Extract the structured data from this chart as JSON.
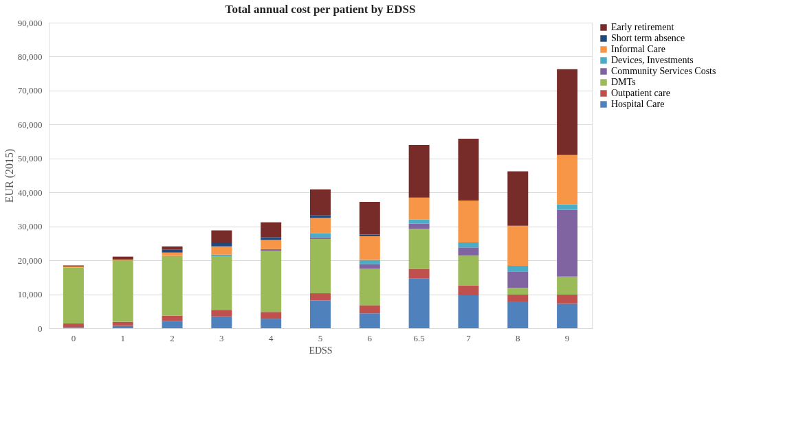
{
  "chart_data": {
    "type": "bar",
    "stacked": true,
    "title": "Total annual cost per patient by EDSS",
    "xlabel": "EDSS",
    "ylabel": "EUR (2015)",
    "categories": [
      "0",
      "1",
      "2",
      "3",
      "4",
      "5",
      "6",
      "6.5",
      "7",
      "8",
      "9"
    ],
    "series": [
      {
        "name": "Hospital Care",
        "color": "#4f81bd",
        "values": [
          300,
          700,
          2100,
          3500,
          2800,
          8200,
          4400,
          14700,
          9700,
          7700,
          7200
        ]
      },
      {
        "name": "Outpatient care",
        "color": "#c0504d",
        "values": [
          1100,
          1200,
          1600,
          1900,
          2000,
          2100,
          2400,
          2800,
          2900,
          2200,
          2700
        ]
      },
      {
        "name": "DMTs",
        "color": "#9bbb59",
        "values": [
          16500,
          18000,
          17600,
          15700,
          18000,
          16000,
          10700,
          11800,
          8800,
          2000,
          5300
        ]
      },
      {
        "name": "Community Services Costs",
        "color": "#8064a2",
        "values": [
          0,
          0,
          0,
          0,
          500,
          500,
          1400,
          1500,
          2400,
          4700,
          19700
        ]
      },
      {
        "name": "Devices, Investments",
        "color": "#4bacc6",
        "values": [
          0,
          100,
          0,
          600,
          0,
          1200,
          1200,
          1200,
          1500,
          1800,
          1600
        ]
      },
      {
        "name": "Informal Care",
        "color": "#f79646",
        "values": [
          300,
          200,
          1000,
          2400,
          2700,
          4500,
          7000,
          6500,
          12300,
          11800,
          14500
        ]
      },
      {
        "name": "Short term absence",
        "color": "#1f497d",
        "values": [
          0,
          200,
          900,
          1200,
          800,
          700,
          500,
          0,
          0,
          0,
          0
        ]
      },
      {
        "name": "Early retirement",
        "color": "#772c2a",
        "values": [
          300,
          700,
          900,
          3500,
          4400,
          7700,
          9600,
          15500,
          18200,
          16000,
          25300
        ]
      }
    ],
    "ylim": [
      0,
      90000
    ],
    "yticks": [
      {
        "value": 0,
        "label": "0"
      },
      {
        "value": 10000,
        "label": "10,000"
      },
      {
        "value": 20000,
        "label": "20,000"
      },
      {
        "value": 30000,
        "label": "30,000"
      },
      {
        "value": 40000,
        "label": "40,000"
      },
      {
        "value": 50000,
        "label": "50,000"
      },
      {
        "value": 60000,
        "label": "60,000"
      },
      {
        "value": 70000,
        "label": "70,000"
      },
      {
        "value": 80000,
        "label": "80,000"
      },
      {
        "value": 90000,
        "label": "90,000"
      }
    ],
    "grid": "y",
    "legend": "right"
  }
}
